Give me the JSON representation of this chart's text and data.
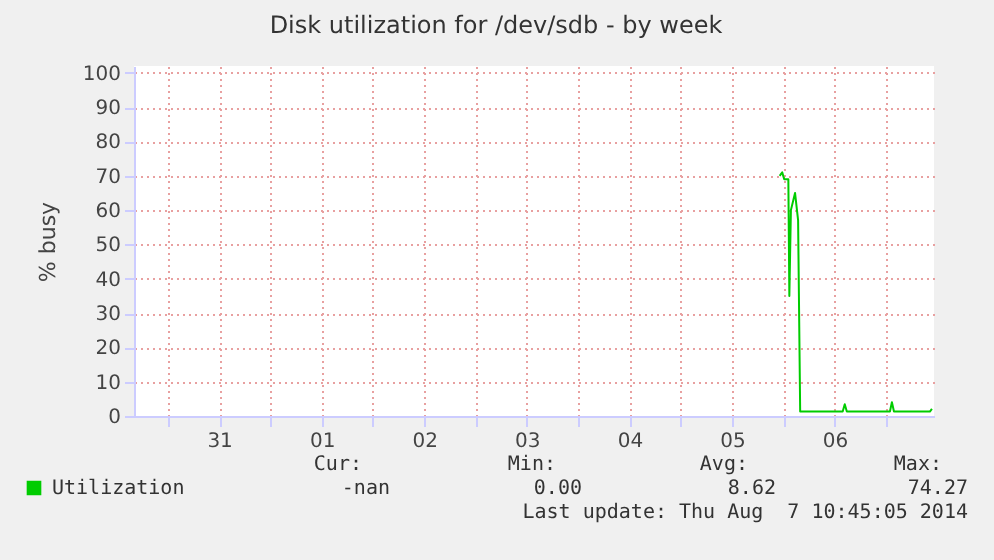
{
  "chart_data": {
    "type": "line",
    "title": "Disk utilization for /dev/sdb - by week",
    "ylabel": "% busy",
    "series": [
      {
        "name": "Utilization",
        "color": "#00cc00",
        "x": [
          "2014-08-05T23:10",
          "2014-08-05T23:46",
          "2014-08-06T00:14",
          "2014-08-06T01:12",
          "2014-08-06T01:26",
          "2014-08-06T01:48",
          "2014-08-06T02:46",
          "2014-08-06T03:29",
          "2014-08-06T03:58",
          "2014-08-06T13:55",
          "2014-08-06T14:24",
          "2014-08-06T14:53",
          "2014-08-07T00:58",
          "2014-08-07T01:26",
          "2014-08-07T01:55",
          "2014-08-07T10:19",
          "2014-08-07T10:48"
        ],
        "values": [
          70,
          71,
          69,
          69,
          35,
          60,
          65,
          57,
          1.3,
          1.3,
          3.4,
          1.3,
          1.3,
          4,
          1.3,
          1.3,
          2.1
        ]
      }
    ],
    "xlim": [
      "2014-07-30T16:05",
      "2014-08-07T11:17"
    ],
    "xticks": [
      {
        "value": "2014-07-31T00:00",
        "label": null
      },
      {
        "value": "2014-07-31T12:00",
        "label": "31"
      },
      {
        "value": "2014-08-01T00:00",
        "label": null
      },
      {
        "value": "2014-08-01T12:00",
        "label": "01"
      },
      {
        "value": "2014-08-02T00:00",
        "label": null
      },
      {
        "value": "2014-08-02T12:00",
        "label": "02"
      },
      {
        "value": "2014-08-03T00:00",
        "label": null
      },
      {
        "value": "2014-08-03T12:00",
        "label": "03"
      },
      {
        "value": "2014-08-04T00:00",
        "label": null
      },
      {
        "value": "2014-08-04T12:00",
        "label": "04"
      },
      {
        "value": "2014-08-05T00:00",
        "label": null
      },
      {
        "value": "2014-08-05T12:00",
        "label": "05"
      },
      {
        "value": "2014-08-06T00:00",
        "label": null
      },
      {
        "value": "2014-08-06T12:00",
        "label": "06"
      },
      {
        "value": "2014-08-07T00:00",
        "label": null
      }
    ],
    "ylim": [
      0,
      102
    ],
    "yticks": [
      0,
      10,
      20,
      30,
      40,
      50,
      60,
      70,
      80,
      90,
      100
    ],
    "grid": true,
    "legend": "bottom left",
    "annotations": [
      "Cur:",
      "Min:",
      "Avg:",
      "Max:",
      "-nan",
      "0.00",
      "8.62",
      "74.27",
      "Last update: Thu Aug  7 10:45:05 2014"
    ]
  }
}
